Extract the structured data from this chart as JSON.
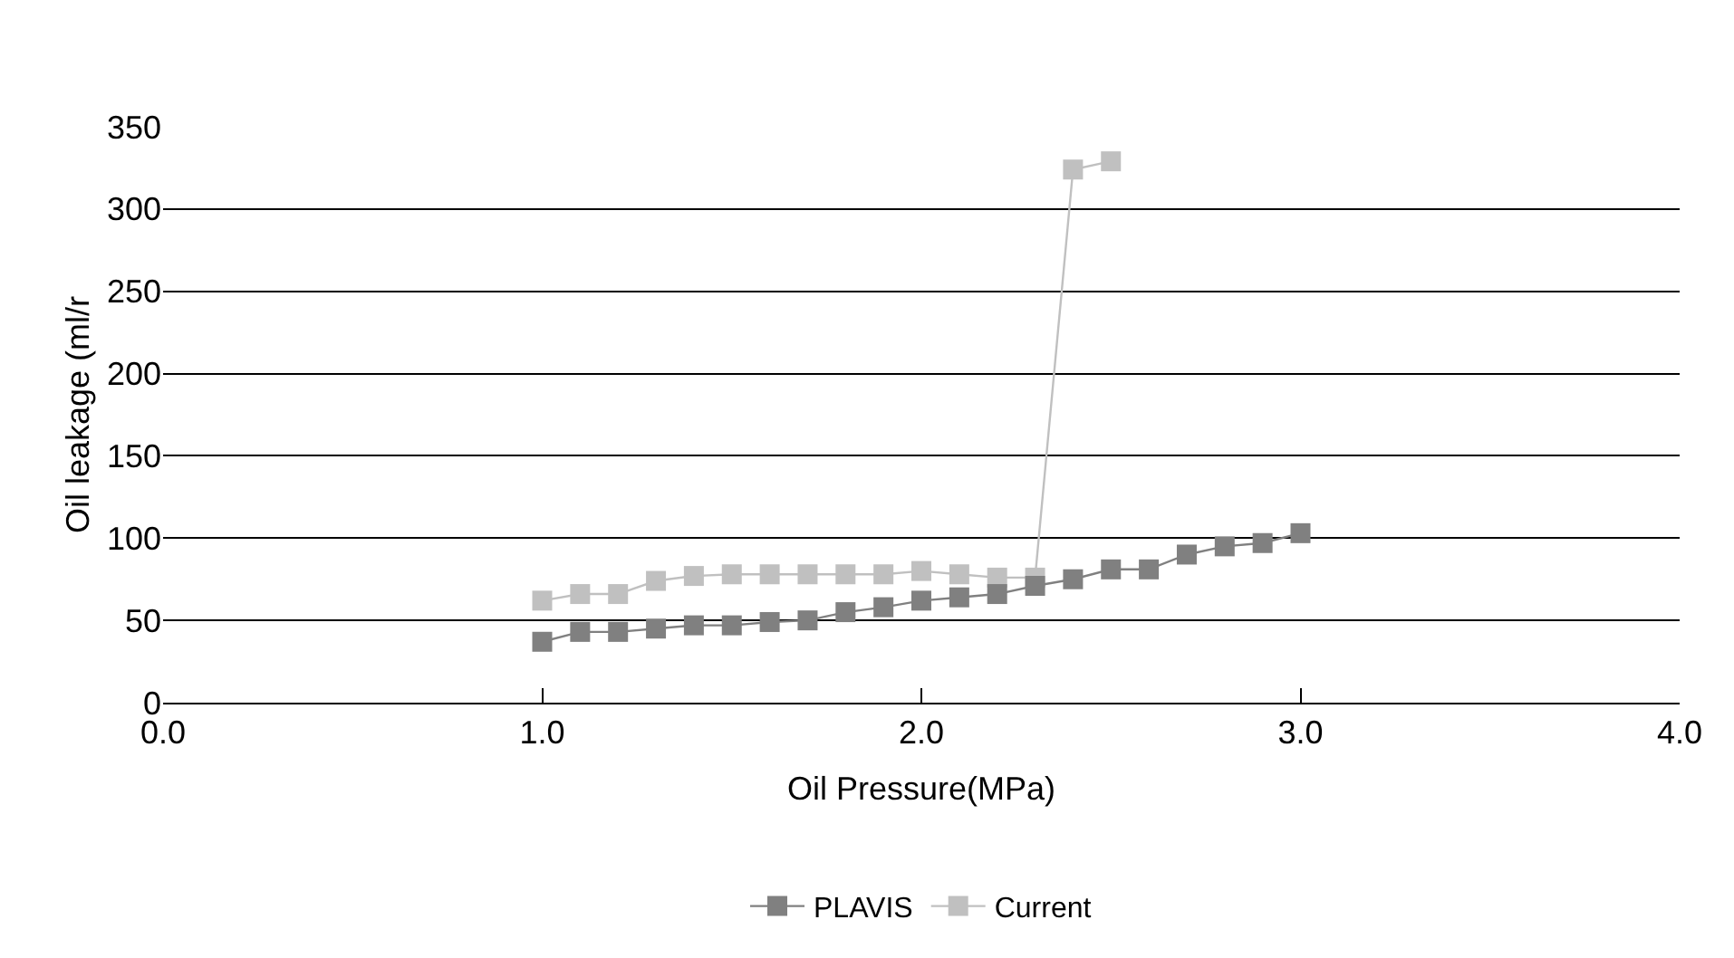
{
  "chart_data": {
    "type": "line",
    "xlabel": "Oil Pressure(MPa)",
    "ylabel": "Oil leakage (ml/r",
    "x": [
      1.0,
      1.1,
      1.2,
      1.3,
      1.4,
      1.5,
      1.6,
      1.7,
      1.8,
      1.9,
      2.0,
      2.1,
      2.2,
      2.3,
      2.4,
      2.5,
      2.6,
      2.7,
      2.8,
      2.9,
      3.0
    ],
    "series": [
      {
        "name": "PLAVIS",
        "color": "#808080",
        "values": [
          37,
          43,
          43,
          45,
          47,
          47,
          49,
          50,
          55,
          58,
          62,
          64,
          66,
          71,
          75,
          81,
          81,
          90,
          95,
          97,
          103
        ]
      },
      {
        "name": "Current",
        "color": "#c0c0c0",
        "values": [
          62,
          66,
          66,
          74,
          77,
          78,
          78,
          78,
          78,
          78,
          80,
          78,
          76,
          76,
          324,
          329,
          null,
          null,
          null,
          null,
          null
        ]
      }
    ],
    "xlim": [
      0,
      4
    ],
    "xticks": [
      {
        "value": 0,
        "label": "0.0"
      },
      {
        "value": 1,
        "label": "1.0"
      },
      {
        "value": 2,
        "label": "2.0"
      },
      {
        "value": 3,
        "label": "3.0"
      },
      {
        "value": 4,
        "label": "4.0"
      }
    ],
    "ylim": [
      0,
      350
    ],
    "yticks": [
      0,
      50,
      100,
      150,
      200,
      250,
      300,
      350
    ],
    "grid": "y",
    "legend": "bottom",
    "marker": "square",
    "line_style": "solid"
  }
}
